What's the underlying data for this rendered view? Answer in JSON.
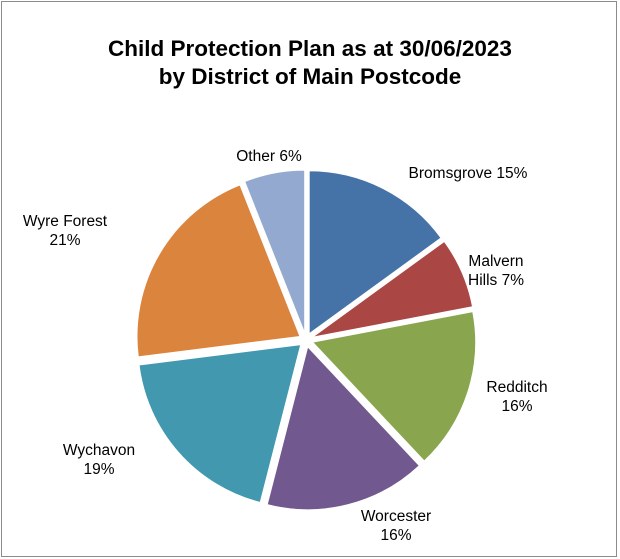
{
  "chart_data": {
    "type": "pie",
    "title_lines": [
      "Child Protection Plan as at 30/06/2023",
      "by District of Main Postcode"
    ],
    "slices": [
      {
        "name": "Bromsgrove",
        "value": 15,
        "color": "#4572a7",
        "label_lines": [
          "Bromsgrove 15%"
        ]
      },
      {
        "name": "Malvern Hills",
        "value": 7,
        "color": "#aa4643",
        "label_lines": [
          "Malvern",
          "Hills 7%"
        ]
      },
      {
        "name": "Redditch",
        "value": 16,
        "color": "#89a54e",
        "label_lines": [
          "Redditch",
          "16%"
        ]
      },
      {
        "name": "Worcester",
        "value": 16,
        "color": "#71588f",
        "label_lines": [
          "Worcester",
          "16%"
        ]
      },
      {
        "name": "Wychavon",
        "value": 19,
        "color": "#4198af",
        "label_lines": [
          "Wychavon",
          "19%"
        ]
      },
      {
        "name": "Wyre Forest",
        "value": 21,
        "color": "#db843d",
        "label_lines": [
          "Wyre Forest",
          "21%"
        ]
      },
      {
        "name": "Other",
        "value": 6,
        "color": "#93a9cf",
        "label_lines": [
          "Other 6%"
        ]
      }
    ],
    "start_angle": "12 o'clock",
    "direction": "clockwise",
    "exploded": true,
    "legend": "none"
  }
}
